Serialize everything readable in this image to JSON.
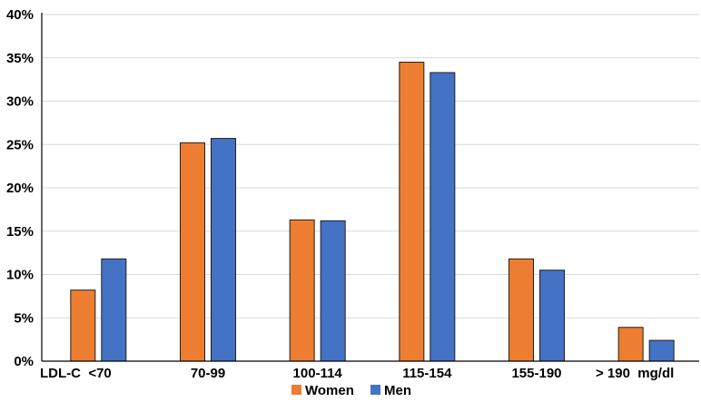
{
  "chart_data": {
    "type": "bar",
    "categories": [
      "LDL-C  <70",
      "70-99",
      "100-114",
      "115-154",
      "155-190",
      "> 190  mg/dl"
    ],
    "series": [
      {
        "name": "Women",
        "values": [
          8.2,
          25.2,
          16.3,
          34.5,
          11.8,
          3.9
        ],
        "color": "#ED7D31"
      },
      {
        "name": "Men",
        "values": [
          11.8,
          25.7,
          16.2,
          33.3,
          10.5,
          2.4
        ],
        "color": "#4472C4"
      }
    ],
    "ylim": [
      0,
      40
    ],
    "yticks": [
      "0%",
      "5%",
      "10%",
      "15%",
      "20%",
      "25%",
      "30%",
      "35%",
      "40%"
    ],
    "ytick_values": [
      0,
      5,
      10,
      15,
      20,
      25,
      30,
      35,
      40
    ],
    "grid": true,
    "legend": "bottom-center",
    "title": "",
    "xlabel": "",
    "ylabel": ""
  }
}
